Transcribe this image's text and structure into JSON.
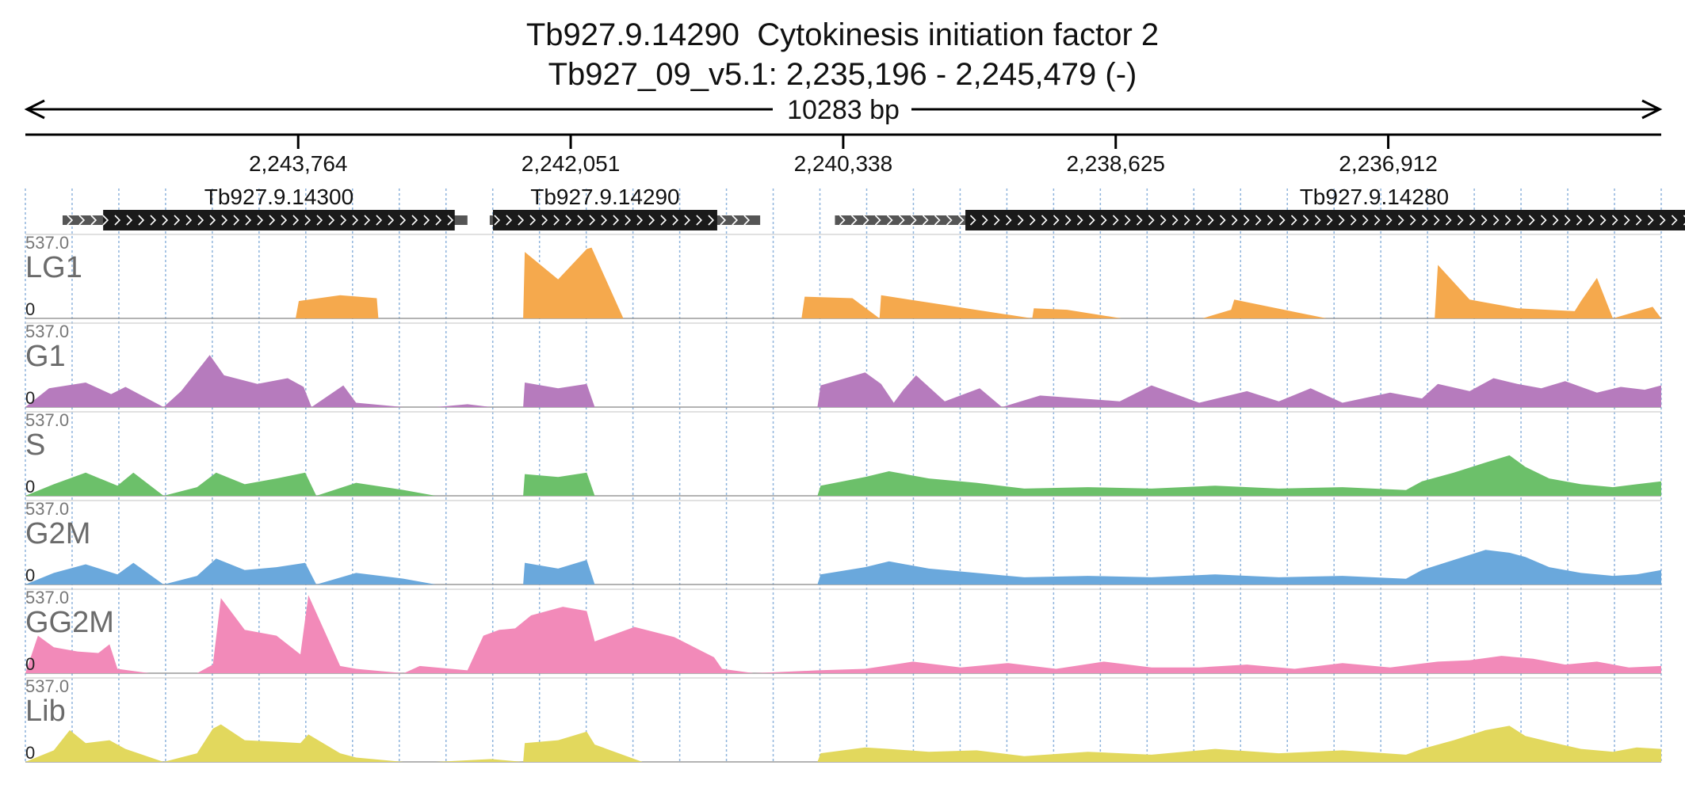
{
  "title": {
    "line1": "Tb927.9.14290  Cytokinesis initiation factor 2",
    "line2": "Tb927_09_v5.1: 2,235,196 - 2,245,479 (-)"
  },
  "span_label": "10283 bp",
  "region": {
    "chrom": "Tb927_09_v5.1",
    "start": 2235196,
    "end": 2245479,
    "strand": "-"
  },
  "colors": {
    "LG1": "#f5a94d",
    "G1": "#b67bbd",
    "S": "#6cc06a",
    "G2M": "#6aa8dc",
    "GG2M": "#f28ab9",
    "Lib": "#e2d85d",
    "gene": "#1a1a1a",
    "gridline": "#8fb4dc"
  },
  "chart_data": {
    "type": "area",
    "x_axis": {
      "reversed": true,
      "ticks": [
        {
          "pos": 2243764,
          "label": "2,243,764"
        },
        {
          "pos": 2242051,
          "label": "2,242,051"
        },
        {
          "pos": 2240338,
          "label": "2,240,338"
        },
        {
          "pos": 2238625,
          "label": "2,238,625"
        },
        {
          "pos": 2236912,
          "label": "2,236,912"
        }
      ]
    },
    "genes": [
      {
        "name": "Tb927.9.14300",
        "cds": [
          2244990,
          2242780
        ],
        "utr": [
          2245245,
          2242700
        ]
      },
      {
        "name": "Tb927.9.14290",
        "cds": [
          2242540,
          2241130
        ],
        "utr": [
          2242560,
          2240860
        ]
      },
      {
        "name": "Tb927.9.14280",
        "cds": [
          2239570,
          2234430
        ],
        "utr": [
          2240390,
          2234430
        ]
      }
    ],
    "ylim": [
      0,
      537.0
    ],
    "y_max_label": "537.0",
    "y_min_label": "0",
    "tracks": [
      {
        "name": "LG1",
        "x": [
          2245479,
          2243780,
          2243760,
          2243500,
          2243270,
          2243260,
          2242350,
          2242340,
          2242130,
          2241950,
          2241920,
          2241720,
          2241400,
          2240600,
          2240580,
          2240280,
          2240110,
          2240100,
          2239150,
          2239140,
          2238930,
          2238590,
          2238080,
          2237900,
          2237880,
          2237300,
          2236620,
          2236600,
          2236400,
          2236100,
          2235740,
          2235700,
          2235600,
          2235500,
          2235250,
          2235196
        ],
        "y": [
          0,
          0,
          120,
          160,
          140,
          0,
          0,
          460,
          270,
          480,
          490,
          0,
          0,
          0,
          150,
          140,
          0,
          160,
          0,
          70,
          60,
          0,
          0,
          60,
          130,
          0,
          0,
          370,
          130,
          70,
          50,
          120,
          280,
          0,
          80,
          0
        ]
      },
      {
        "name": "G1",
        "x": [
          2245479,
          2245330,
          2245100,
          2244940,
          2244850,
          2244610,
          2244500,
          2244320,
          2244230,
          2244020,
          2243830,
          2243730,
          2243680,
          2243480,
          2243400,
          2243100,
          2242900,
          2242700,
          2242550,
          2242350,
          2242340,
          2242130,
          2241950,
          2241900,
          2241600,
          2240500,
          2240480,
          2240200,
          2240100,
          2240020,
          2239960,
          2239880,
          2239700,
          2239480,
          2239340,
          2239100,
          2238600,
          2238400,
          2238100,
          2237800,
          2237600,
          2237400,
          2237200,
          2236900,
          2236700,
          2236600,
          2236400,
          2236250,
          2236100,
          2235950,
          2235800,
          2235600,
          2235450,
          2235300,
          2235196
        ],
        "y": [
          0,
          130,
          170,
          90,
          140,
          0,
          110,
          360,
          220,
          160,
          200,
          140,
          0,
          150,
          30,
          0,
          0,
          20,
          0,
          0,
          170,
          130,
          160,
          0,
          0,
          0,
          150,
          240,
          160,
          30,
          120,
          220,
          40,
          130,
          0,
          80,
          40,
          150,
          30,
          110,
          40,
          130,
          30,
          100,
          60,
          160,
          110,
          200,
          160,
          130,
          180,
          100,
          140,
          120,
          150
        ]
      },
      {
        "name": "S",
        "x": [
          2245479,
          2245300,
          2245100,
          2244900,
          2244800,
          2244610,
          2244400,
          2244280,
          2244100,
          2243900,
          2243720,
          2243650,
          2243400,
          2243100,
          2242900,
          2242350,
          2242340,
          2242130,
          2241950,
          2241900,
          2241600,
          2240500,
          2240480,
          2240200,
          2240050,
          2239800,
          2239500,
          2239200,
          2238800,
          2238400,
          2238000,
          2237600,
          2237200,
          2236800,
          2236700,
          2236500,
          2236300,
          2236150,
          2236050,
          2235900,
          2235700,
          2235500,
          2235350,
          2235196
        ],
        "y": [
          0,
          80,
          160,
          70,
          160,
          0,
          60,
          160,
          80,
          120,
          160,
          0,
          90,
          40,
          0,
          0,
          150,
          130,
          160,
          0,
          0,
          0,
          70,
          130,
          170,
          120,
          90,
          50,
          60,
          50,
          70,
          50,
          60,
          40,
          100,
          160,
          230,
          280,
          200,
          120,
          80,
          60,
          80,
          100
        ]
      },
      {
        "name": "G2M",
        "x": [
          2245479,
          2245300,
          2245100,
          2244900,
          2244800,
          2244610,
          2244400,
          2244280,
          2244100,
          2243900,
          2243720,
          2243650,
          2243400,
          2243100,
          2242900,
          2242350,
          2242340,
          2242130,
          2241950,
          2241900,
          2241600,
          2240500,
          2240480,
          2240200,
          2240050,
          2239800,
          2239500,
          2239200,
          2238800,
          2238400,
          2238000,
          2237600,
          2237200,
          2236800,
          2236700,
          2236500,
          2236300,
          2236150,
          2236050,
          2235900,
          2235700,
          2235500,
          2235350,
          2235196
        ],
        "y": [
          0,
          80,
          140,
          70,
          150,
          0,
          60,
          180,
          100,
          120,
          150,
          0,
          80,
          40,
          0,
          0,
          150,
          110,
          170,
          0,
          0,
          0,
          70,
          120,
          160,
          110,
          80,
          50,
          60,
          50,
          70,
          50,
          60,
          40,
          100,
          170,
          240,
          220,
          190,
          120,
          80,
          60,
          70,
          100
        ]
      },
      {
        "name": "GG2M",
        "x": [
          2245479,
          2245400,
          2245300,
          2245150,
          2245020,
          2244950,
          2244900,
          2244700,
          2244400,
          2244300,
          2244250,
          2244100,
          2243900,
          2243750,
          2243700,
          2243500,
          2243400,
          2243100,
          2243000,
          2242700,
          2242600,
          2242500,
          2242400,
          2242300,
          2242100,
          2241950,
          2241900,
          2241650,
          2241400,
          2241150,
          2241100,
          2240900,
          2240500,
          2240200,
          2239900,
          2239600,
          2239300,
          2239000,
          2238700,
          2238400,
          2238100,
          2237800,
          2237500,
          2237200,
          2236900,
          2236600,
          2236400,
          2236200,
          2236000,
          2235800,
          2235600,
          2235400,
          2235196
        ],
        "y": [
          0,
          260,
          180,
          150,
          140,
          200,
          30,
          0,
          0,
          60,
          520,
          300,
          260,
          130,
          540,
          50,
          30,
          0,
          50,
          20,
          260,
          300,
          310,
          400,
          460,
          430,
          220,
          320,
          250,
          110,
          30,
          0,
          20,
          30,
          80,
          40,
          70,
          30,
          80,
          40,
          40,
          60,
          30,
          70,
          40,
          80,
          90,
          120,
          100,
          60,
          80,
          40,
          50
        ]
      },
      {
        "name": "Lib",
        "x": [
          2245479,
          2245300,
          2245200,
          2245100,
          2244950,
          2244850,
          2244610,
          2244400,
          2244300,
          2244250,
          2244100,
          2243900,
          2243750,
          2243700,
          2243500,
          2243400,
          2243100,
          2242900,
          2242550,
          2242350,
          2242340,
          2242130,
          2241950,
          2241900,
          2241600,
          2240500,
          2240480,
          2240200,
          2240050,
          2239800,
          2239500,
          2239200,
          2238800,
          2238400,
          2238000,
          2237600,
          2237200,
          2236800,
          2236700,
          2236500,
          2236300,
          2236150,
          2236050,
          2235900,
          2235700,
          2235500,
          2235350,
          2235196
        ],
        "y": [
          0,
          80,
          220,
          130,
          150,
          90,
          0,
          60,
          230,
          260,
          150,
          140,
          130,
          190,
          60,
          30,
          0,
          0,
          20,
          0,
          130,
          150,
          210,
          120,
          0,
          0,
          60,
          100,
          90,
          70,
          80,
          40,
          70,
          50,
          90,
          60,
          80,
          50,
          90,
          150,
          220,
          250,
          180,
          140,
          90,
          70,
          100,
          90
        ]
      }
    ]
  }
}
